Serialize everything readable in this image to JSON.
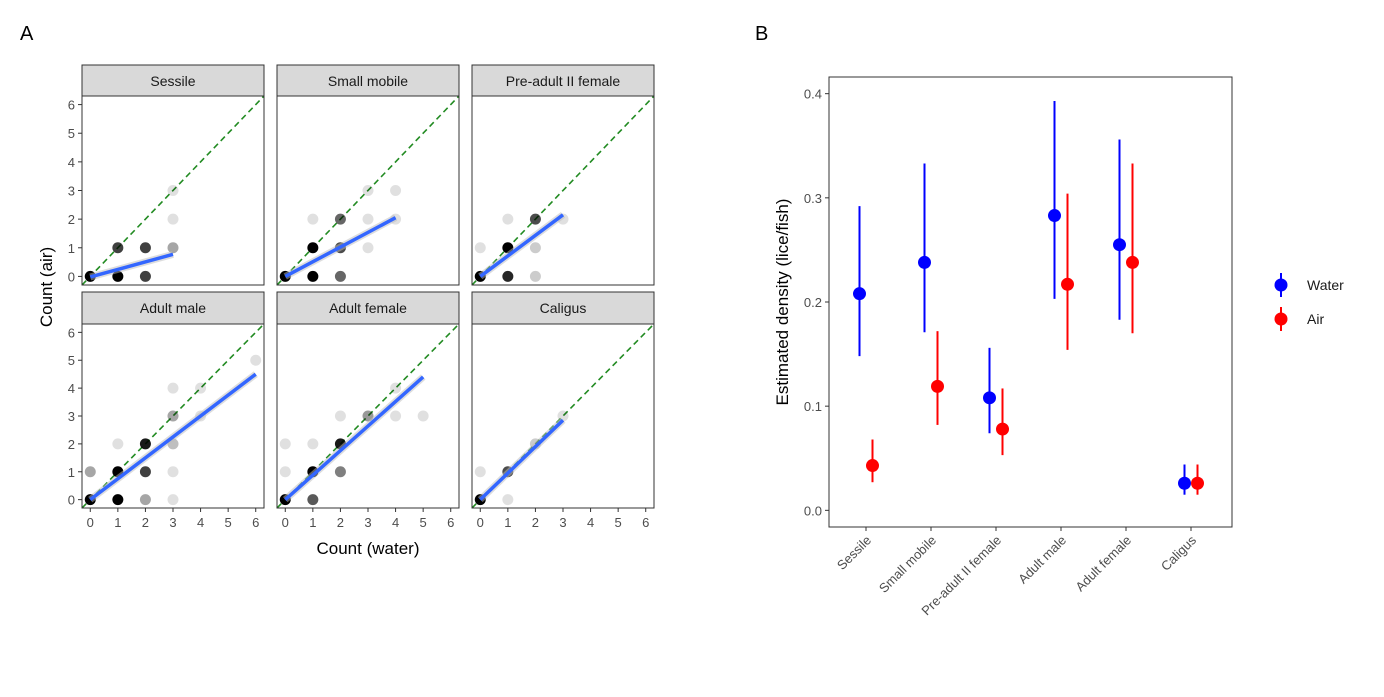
{
  "chart_data": [
    {
      "panel_label": "A",
      "type": "scatter",
      "xlabel": "Count (water)",
      "ylabel": "Count (air)",
      "xlim": [
        -0.3,
        6.3
      ],
      "ylim": [
        -0.3,
        6.3
      ],
      "x_ticks": [
        "0",
        "1",
        "2",
        "3",
        "4",
        "5",
        "6"
      ],
      "y_ticks": [
        "0",
        "1",
        "2",
        "3",
        "4",
        "5",
        "6"
      ],
      "reference_line": {
        "slope": 1,
        "intercept": 0,
        "style": "dashed",
        "color": "#228B22"
      },
      "fit_color": "#3366FF",
      "grid": false,
      "facets": [
        {
          "title": "Sessile",
          "points": [
            [
              0,
              0,
              1
            ],
            [
              1,
              0,
              1
            ],
            [
              2,
              0,
              0.75
            ],
            [
              1,
              1,
              0.75
            ],
            [
              2,
              1,
              0.75
            ],
            [
              3,
              1,
              0.35
            ],
            [
              3,
              2,
              0.12
            ],
            [
              3,
              3,
              0.12
            ]
          ],
          "fit": [
            [
              0,
              -0.02
            ],
            [
              3,
              0.77
            ]
          ]
        },
        {
          "title": "Small mobile",
          "points": [
            [
              0,
              0,
              1
            ],
            [
              1,
              0,
              1
            ],
            [
              2,
              0,
              0.6
            ],
            [
              1,
              1,
              1
            ],
            [
              2,
              1,
              0.7
            ],
            [
              3,
              1,
              0.12
            ],
            [
              1,
              2,
              0.12
            ],
            [
              2,
              2,
              0.6
            ],
            [
              3,
              2,
              0.12
            ],
            [
              4,
              2,
              0.12
            ],
            [
              3,
              3,
              0.12
            ],
            [
              4,
              3,
              0.12
            ]
          ],
          "fit": [
            [
              0,
              0
            ],
            [
              4,
              2.05
            ]
          ]
        },
        {
          "title": "Pre-adult II female",
          "points": [
            [
              0,
              0,
              1
            ],
            [
              1,
              0,
              0.85
            ],
            [
              2,
              0,
              0.2
            ],
            [
              0,
              1,
              0.12
            ],
            [
              1,
              1,
              1
            ],
            [
              2,
              1,
              0.2
            ],
            [
              1,
              2,
              0.12
            ],
            [
              2,
              2,
              0.7
            ],
            [
              3,
              2,
              0.12
            ]
          ],
          "fit": [
            [
              0,
              0
            ],
            [
              3,
              2.15
            ]
          ]
        },
        {
          "title": "Adult male",
          "points": [
            [
              0,
              0,
              1
            ],
            [
              1,
              0,
              1
            ],
            [
              2,
              0,
              0.35
            ],
            [
              3,
              0,
              0.12
            ],
            [
              0,
              1,
              0.35
            ],
            [
              1,
              1,
              1
            ],
            [
              2,
              1,
              0.75
            ],
            [
              3,
              1,
              0.12
            ],
            [
              1,
              2,
              0.12
            ],
            [
              2,
              2,
              0.9
            ],
            [
              3,
              2,
              0.25
            ],
            [
              3,
              3,
              0.35
            ],
            [
              4,
              3,
              0.12
            ],
            [
              3,
              4,
              0.12
            ],
            [
              4,
              4,
              0.12
            ],
            [
              6,
              5,
              0.12
            ]
          ],
          "fit": [
            [
              0,
              0
            ],
            [
              6,
              4.5
            ]
          ]
        },
        {
          "title": "Adult female",
          "points": [
            [
              0,
              0,
              1
            ],
            [
              1,
              0,
              0.65
            ],
            [
              0,
              1,
              0.12
            ],
            [
              1,
              1,
              1
            ],
            [
              2,
              1,
              0.5
            ],
            [
              0,
              2,
              0.12
            ],
            [
              1,
              2,
              0.12
            ],
            [
              2,
              2,
              0.9
            ],
            [
              2,
              3,
              0.12
            ],
            [
              3,
              3,
              0.4
            ],
            [
              4,
              3,
              0.12
            ],
            [
              5,
              3,
              0.12
            ],
            [
              4,
              4,
              0.12
            ]
          ],
          "fit": [
            [
              0,
              0
            ],
            [
              5,
              4.4
            ]
          ]
        },
        {
          "title": "Caligus",
          "points": [
            [
              0,
              0,
              1
            ],
            [
              1,
              0,
              0.12
            ],
            [
              0,
              1,
              0.12
            ],
            [
              1,
              1,
              0.7
            ],
            [
              2,
              2,
              0.2
            ],
            [
              3,
              3,
              0.12
            ]
          ],
          "fit": [
            [
              0,
              0
            ],
            [
              3,
              2.85
            ]
          ]
        }
      ]
    },
    {
      "panel_label": "B",
      "type": "pointrange",
      "ylabel": "Estimated density (lice/fish)",
      "ylim": [
        -0.016,
        0.416
      ],
      "y_ticks": [
        "0.0",
        "0.1",
        "0.2",
        "0.3",
        "0.4"
      ],
      "categories": [
        "Sessile",
        "Small mobile",
        "Pre-adult II female",
        "Adult male",
        "Adult female",
        "Caligus"
      ],
      "grid": false,
      "legend_position": "right",
      "series": [
        {
          "name": "Water",
          "color": "#0000FF",
          "values": [
            0.208,
            0.238,
            0.108,
            0.283,
            0.255,
            0.026
          ],
          "lower": [
            0.148,
            0.171,
            0.074,
            0.203,
            0.183,
            0.015
          ],
          "upper": [
            0.292,
            0.333,
            0.156,
            0.393,
            0.356,
            0.044
          ]
        },
        {
          "name": "Air",
          "color": "#FF0000",
          "values": [
            0.043,
            0.119,
            0.078,
            0.217,
            0.238,
            0.026
          ],
          "lower": [
            0.027,
            0.082,
            0.053,
            0.154,
            0.17,
            0.015
          ],
          "upper": [
            0.068,
            0.172,
            0.117,
            0.304,
            0.333,
            0.044
          ]
        }
      ]
    }
  ]
}
